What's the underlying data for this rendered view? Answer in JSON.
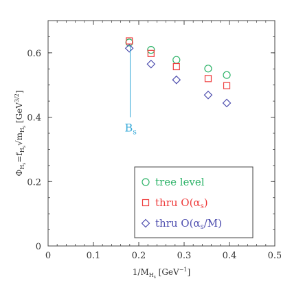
{
  "chart_data": {
    "type": "scatter",
    "xlabel": "1/M_{H_s} [GeV^{-1}]",
    "ylabel": "Φ_{H_s} = f_{H_s} √m_{H_s} [GeV^{3/2}]",
    "xlim": [
      0,
      0.5
    ],
    "ylim": [
      0,
      0.7
    ],
    "x_ticks": [
      0,
      0.1,
      0.2,
      0.3,
      0.4,
      0.5
    ],
    "y_ticks": [
      0,
      0.2,
      0.4,
      0.6
    ],
    "x_tick_labels": [
      "0",
      "0.1",
      "0.2",
      "0.3",
      "0.4",
      "0.5"
    ],
    "y_tick_labels": [
      "0",
      "0.2",
      "0.4",
      "0.6"
    ],
    "grid": false,
    "legend_placement": "bottom-right",
    "series": [
      {
        "name": "tree level",
        "marker": "circle",
        "color": "#2db368",
        "x": [
          0.179,
          0.227,
          0.283,
          0.353,
          0.394
        ],
        "y": [
          0.632,
          0.609,
          0.578,
          0.551,
          0.531
        ]
      },
      {
        "name": "thru O(αs)",
        "marker": "square",
        "color": "#ee3a3a",
        "x": [
          0.179,
          0.227,
          0.283,
          0.353,
          0.394
        ],
        "y": [
          0.637,
          0.598,
          0.557,
          0.52,
          0.498
        ]
      },
      {
        "name": "thru O(αs/M)",
        "marker": "diamond",
        "color": "#4d4dae",
        "x": [
          0.179,
          0.227,
          0.283,
          0.353,
          0.394
        ],
        "y": [
          0.614,
          0.565,
          0.516,
          0.469,
          0.444
        ]
      }
    ],
    "annotations": [
      {
        "text": "Bs",
        "color": "#36a9d8",
        "line_x": 0.181,
        "line_y": [
          0.4,
          0.62
        ]
      }
    ]
  }
}
